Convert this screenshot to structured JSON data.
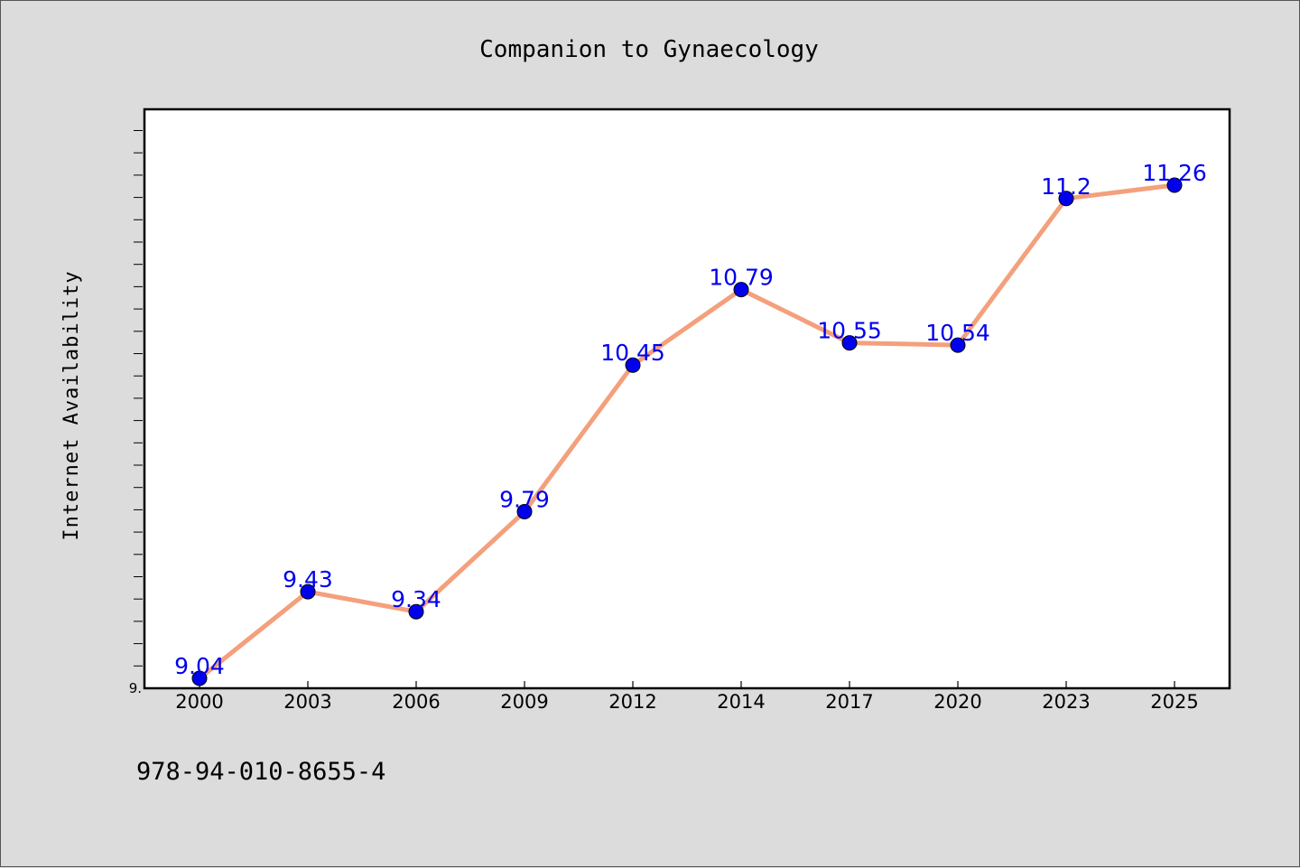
{
  "footer": {
    "isbn": "978-94-010-8655-4"
  },
  "chart_data": {
    "type": "line",
    "title": "Companion to Gynaecology",
    "xlabel": "",
    "ylabel": "Internet Availability",
    "x": [
      "2000",
      "2003",
      "2006",
      "2009",
      "2012",
      "2014",
      "2017",
      "2020",
      "2023",
      "2025"
    ],
    "series": [
      {
        "values": [
          9.04,
          9.43,
          9.34,
          9.79,
          10.45,
          10.79,
          10.55,
          10.54,
          11.2,
          11.26
        ]
      }
    ],
    "data_labels": [
      "9.04",
      "9.43",
      "9.34",
      "9.79",
      "10.45",
      "10.79",
      "10.55",
      "10.54",
      "11.2",
      "11.26"
    ],
    "ytick_labels": [
      "9."
    ],
    "ylim": [
      9.0,
      11.6
    ],
    "grid": false,
    "colors": {
      "line": "#f4a07c",
      "marker": "#0000ee",
      "label": "#0000ee",
      "plot_background": "#ffffff",
      "page_background": "#dcdcdc"
    }
  }
}
